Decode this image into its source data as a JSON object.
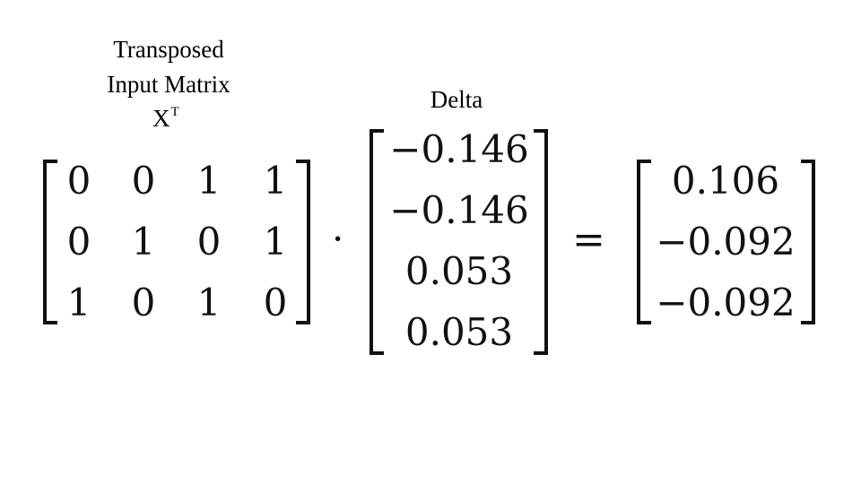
{
  "labels": {
    "transposed_line1": "Transposed",
    "transposed_line2": "Input Matrix",
    "transposed_symbol": "X",
    "transposed_superscript": "T",
    "delta": "Delta"
  },
  "matrix_x_transposed": [
    [
      "0",
      "0",
      "1",
      "1"
    ],
    [
      "0",
      "1",
      "0",
      "1"
    ],
    [
      "1",
      "0",
      "1",
      "0"
    ]
  ],
  "delta_vector": [
    "−0.146",
    "−0.146",
    "0.053",
    "0.053"
  ],
  "result_vector": [
    "0.106",
    "−0.092",
    "−0.092"
  ],
  "operators": {
    "dot": "·",
    "equals": "="
  }
}
